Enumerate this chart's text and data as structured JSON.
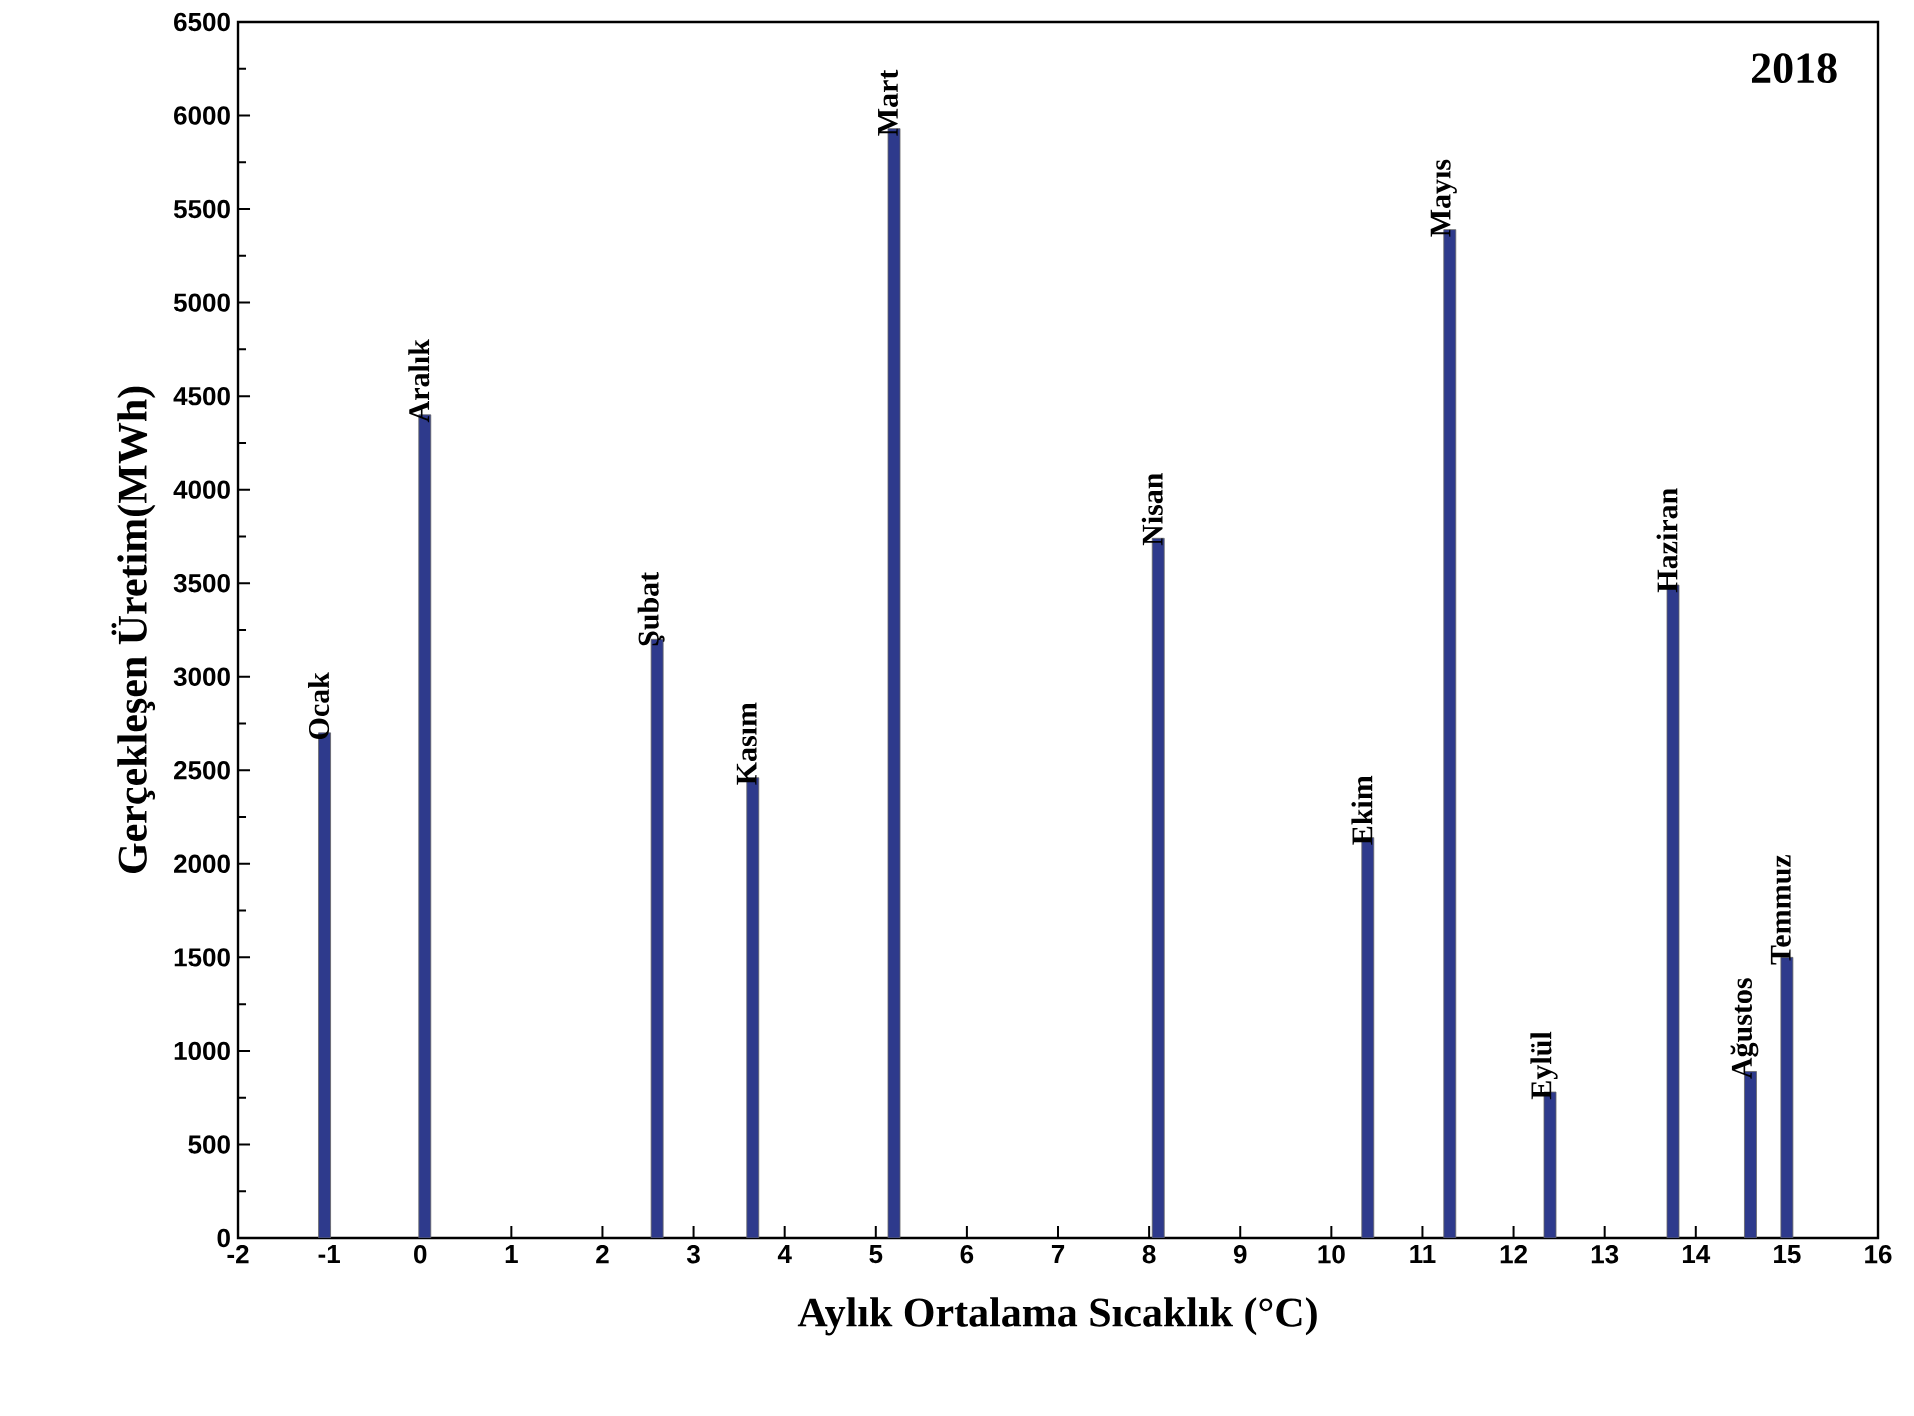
{
  "chart_data": {
    "type": "bar",
    "xlabel": "Aylık Ortalama Sıcaklık (°C)",
    "ylabel": "Gerçekleşen Üretim(MWh)",
    "x": [
      -1.05,
      0.05,
      2.6,
      3.65,
      5.2,
      8.1,
      10.4,
      11.3,
      12.4,
      13.75,
      14.6,
      15.0
    ],
    "values": [
      2700,
      4400,
      3200,
      2460,
      5930,
      3740,
      2140,
      5390,
      780,
      3490,
      890,
      1500
    ],
    "color": "#2e3a8c",
    "xlim": [
      -2,
      16
    ],
    "xticks": [
      -2,
      -1,
      0,
      1,
      2,
      3,
      4,
      5,
      6,
      7,
      8,
      9,
      10,
      11,
      12,
      13,
      14,
      15,
      16
    ],
    "ylim": [
      0,
      6500
    ],
    "yticks": [
      0,
      500,
      1000,
      1500,
      2000,
      2500,
      3000,
      3500,
      4000,
      4500,
      5000,
      5500,
      6000,
      6500
    ],
    "grid": false,
    "annotations": [
      {
        "text": "Ocak",
        "x": -1.05,
        "y": 2700
      },
      {
        "text": "Aralık",
        "x": 0.05,
        "y": 4400
      },
      {
        "text": "Şubat",
        "x": 2.6,
        "y": 3200
      },
      {
        "text": "Kasım",
        "x": 3.65,
        "y": 2460
      },
      {
        "text": "Mart",
        "x": 5.2,
        "y": 5930
      },
      {
        "text": "Nisan",
        "x": 8.1,
        "y": 3740
      },
      {
        "text": "Ekim",
        "x": 10.4,
        "y": 2140
      },
      {
        "text": "Mayıs",
        "x": 11.3,
        "y": 5390
      },
      {
        "text": "Eylül",
        "x": 12.4,
        "y": 780
      },
      {
        "text": "Haziran",
        "x": 13.75,
        "y": 3490
      },
      {
        "text": "Ağustos",
        "x": 14.6,
        "y": 890
      },
      {
        "text": "Temmuz",
        "x": 15.0,
        "y": 1500
      },
      "2018"
    ]
  }
}
